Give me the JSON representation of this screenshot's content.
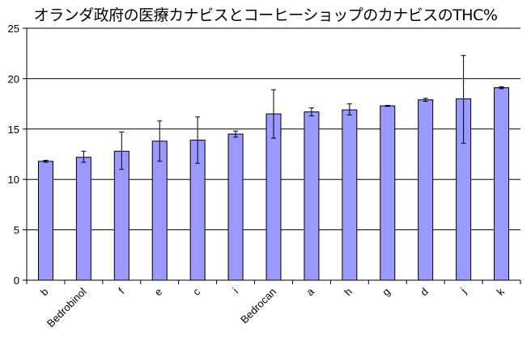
{
  "chart_data": {
    "type": "bar",
    "title": "オランダ政府の医療カナビスとコーヒーショップのカナビスのTHC%",
    "xlabel": "",
    "ylabel": "",
    "categories": [
      "b",
      "Bedrobinol",
      "f",
      "e",
      "c",
      "i",
      "Bedrocan",
      "a",
      "h",
      "g",
      "d",
      "j",
      "k"
    ],
    "values": [
      11.8,
      12.2,
      12.8,
      13.8,
      13.9,
      14.5,
      16.5,
      16.7,
      16.9,
      17.3,
      17.9,
      18.0,
      19.1
    ],
    "error_low": [
      0.1,
      0.5,
      1.8,
      2.0,
      2.3,
      0.3,
      2.4,
      0.4,
      0.5,
      0.05,
      0.15,
      4.4,
      0.1
    ],
    "error_high": [
      0.1,
      0.6,
      1.9,
      2.0,
      2.3,
      0.3,
      2.4,
      0.4,
      0.6,
      0.05,
      0.15,
      4.3,
      0.1
    ],
    "ylim": [
      0,
      25
    ],
    "yticks": [
      0,
      5,
      10,
      15,
      20,
      25
    ],
    "grid": true,
    "legend": "none",
    "bar_color": "#9999ff",
    "bar_edge_color": "#000000"
  }
}
